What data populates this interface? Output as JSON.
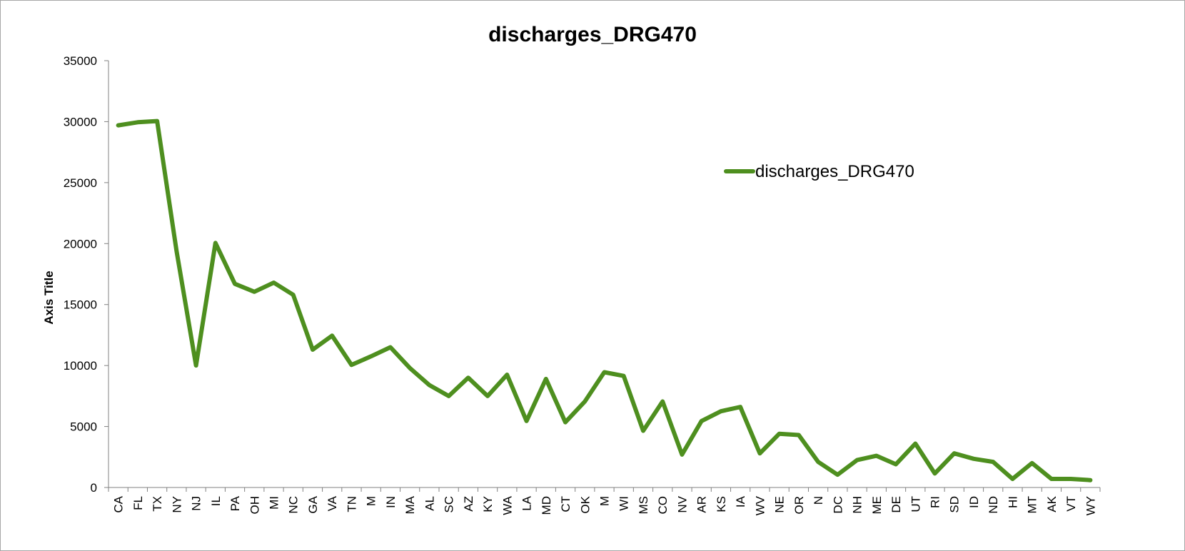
{
  "chart_data": {
    "type": "line",
    "title": "discharges_DRG470",
    "xlabel": "",
    "ylabel": "Axis Title",
    "ylim": [
      0,
      35000
    ],
    "yticks": [
      0,
      5000,
      10000,
      15000,
      20000,
      25000,
      30000,
      35000
    ],
    "grid": false,
    "legend_position": "top-right",
    "categories": [
      "CA",
      "FL",
      "TX",
      "NY",
      "NJ",
      "IL",
      "PA",
      "OH",
      "MI",
      "NC",
      "GA",
      "VA",
      "TN",
      "M",
      "IN",
      "MA",
      "AL",
      "SC",
      "AZ",
      "KY",
      "WA",
      "LA",
      "MD",
      "CT",
      "OK",
      "M",
      "WI",
      "MS",
      "CO",
      "NV",
      "AR",
      "KS",
      "IA",
      "WV",
      "NE",
      "OR",
      "N",
      "DC",
      "NH",
      "ME",
      "DE",
      "UT",
      "RI",
      "SD",
      "ID",
      "ND",
      "HI",
      "MT",
      "AK",
      "VT",
      "WY"
    ],
    "series": [
      {
        "name": "discharges_DRG470",
        "color": "#4e8f1f",
        "values": [
          29700,
          29950,
          30050,
          19400,
          10000,
          20050,
          16700,
          16050,
          16800,
          15800,
          11300,
          12450,
          10050,
          10750,
          11500,
          9800,
          8400,
          7500,
          9000,
          7500,
          9250,
          5450,
          8900,
          5350,
          7050,
          9450,
          9150,
          4650,
          7050,
          2700,
          5450,
          6250,
          6600,
          2800,
          4400,
          4300,
          2100,
          1050,
          2250,
          2600,
          1900,
          3600,
          1150,
          2800,
          2350,
          2100,
          700,
          2000,
          700,
          700,
          600
        ]
      }
    ]
  }
}
